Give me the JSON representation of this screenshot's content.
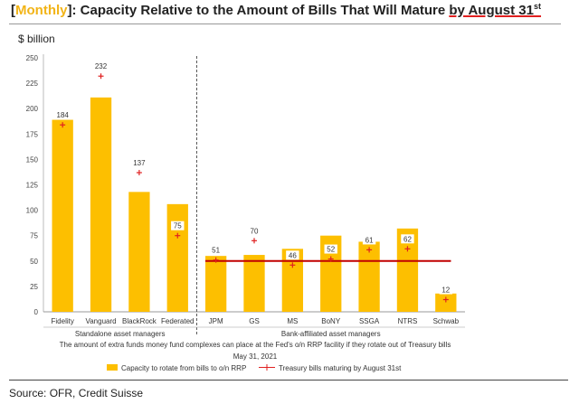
{
  "title": {
    "bracket_open": "[",
    "highlight": "Monthly",
    "bracket_close": "]",
    "main": ": Capacity Relative to the Amount of Bills That Will Mature ",
    "underlined": "by August 31",
    "superscript": "st"
  },
  "unit_label": "$ billion",
  "source": "Source: OFR, Credit Suisse",
  "colors": {
    "bar": "#fdbf00",
    "marker": "#e02020",
    "reference_line": "#c00000",
    "highlight": "#f2b417"
  },
  "chart_data": {
    "type": "bar",
    "categories": [
      "Fidelity",
      "Vanguard",
      "BlackRock",
      "Federated",
      "JPM",
      "GS",
      "MS",
      "BoNY",
      "SSGA",
      "NTRS",
      "Schwab"
    ],
    "ylim": [
      0,
      250
    ],
    "yticks": [
      0,
      25,
      50,
      75,
      100,
      125,
      150,
      175,
      200,
      225,
      250
    ],
    "series": [
      {
        "name": "Capacity to rotate from bills to o/n RRP",
        "kind": "bar",
        "values": [
          189,
          211,
          118,
          106,
          55,
          56,
          62,
          75,
          69,
          82,
          18
        ]
      },
      {
        "name": "Treasury bills maturing by August 31st",
        "kind": "marker",
        "values": [
          184,
          232,
          137,
          75,
          51,
          70,
          46,
          52,
          61,
          62,
          12
        ],
        "labels": [
          "184",
          "232",
          "137",
          "75",
          "51",
          "70",
          "46",
          "52",
          "61",
          "62",
          "12"
        ]
      }
    ],
    "reference_line": {
      "value": 50,
      "from_category": "JPM",
      "to_category": "Schwab"
    },
    "groups": [
      {
        "label": "Standalone asset managers",
        "categories": [
          "Fidelity",
          "Vanguard",
          "BlackRock",
          "Federated"
        ]
      },
      {
        "label": "Bank-affiliated asset managers",
        "categories": [
          "JPM",
          "GS",
          "MS",
          "BoNY",
          "SSGA",
          "NTRS",
          "Schwab"
        ]
      }
    ],
    "caption": "The amount of extra funds money fund complexes can place at the Fed's o/n RRP facility if they rotate out of Treasury bills",
    "date": "May 31, 2021",
    "legend_position": "bottom",
    "grid": false
  }
}
